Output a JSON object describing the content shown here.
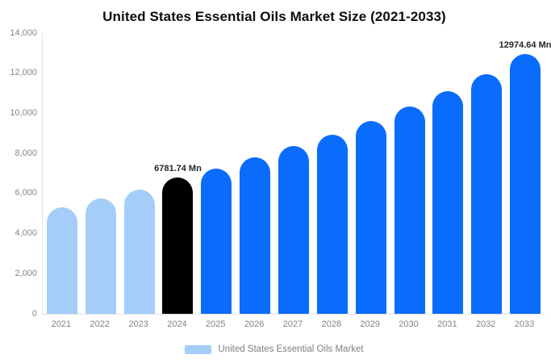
{
  "page": {
    "title": "United States Essential Oils Market Size (2021-2033)"
  },
  "chart_data": {
    "type": "bar",
    "title": "United States Essential Oils Market Size (2021-2033)",
    "categories": [
      "2021",
      "2022",
      "2023",
      "2024",
      "2025",
      "2026",
      "2027",
      "2028",
      "2029",
      "2030",
      "2031",
      "2032",
      "2033"
    ],
    "values": [
      5300,
      5750,
      6200,
      6781.74,
      7250,
      7800,
      8350,
      8950,
      9600,
      10350,
      11100,
      11950,
      12974.64
    ],
    "unit": "Mn",
    "xlabel": "",
    "ylabel": "",
    "ylim": [
      0,
      14000
    ],
    "y_ticks": [
      0,
      2000,
      4000,
      6000,
      8000,
      10000,
      12000,
      14000
    ],
    "y_tick_labels": [
      "0",
      "2,000",
      "4,000",
      "6,000",
      "8,000",
      "10,000",
      "12,000",
      "14,000"
    ],
    "grid": false,
    "bar_colors": [
      "#a4cdf9",
      "#a4cdf9",
      "#a4cdf9",
      "#000000",
      "#0a6cfa",
      "#0a6cfa",
      "#0a6cfa",
      "#0a6cfa",
      "#0a6cfa",
      "#0a6cfa",
      "#0a6cfa",
      "#0a6cfa",
      "#0a6cfa"
    ],
    "data_labels": [
      {
        "index": 3,
        "text": "6781.74 Mn"
      },
      {
        "index": 12,
        "text": "12974.64 Mn"
      }
    ],
    "legend": {
      "position": "bottom",
      "label": "United States Essential Oils Market",
      "swatch_color": "#a4cdf9"
    }
  },
  "colors": {
    "light_blue": "#a4cdf9",
    "blue": "#0a6cfa",
    "black_bar": "#000000",
    "axis_text": "#828282",
    "data_label_text": "#262626",
    "axis_line": "#e2e2e2",
    "background": "#ffffff"
  }
}
